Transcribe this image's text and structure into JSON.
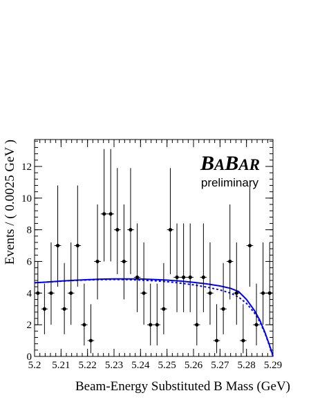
{
  "branding": {
    "logo": "BABAR",
    "logo_parts": [
      "B",
      "A",
      "B",
      "AR"
    ],
    "subtitle": "preliminary"
  },
  "chart_data": {
    "type": "scatter",
    "xlabel": "Beam-Energy Substituted B Mass (GeV)",
    "ylabel": "Events / ( 0.0025 GeV )",
    "xlim": [
      5.2,
      5.29
    ],
    "ylim": [
      0,
      13.7
    ],
    "x_ticks": [
      "5.2",
      "5.21",
      "5.22",
      "5.23",
      "5.24",
      "5.25",
      "5.26",
      "5.27",
      "5.28",
      "5.29"
    ],
    "y_ticks": [
      "0",
      "2",
      "4",
      "6",
      "8",
      "10",
      "12"
    ],
    "x_tick_values": [
      5.2,
      5.21,
      5.22,
      5.23,
      5.24,
      5.25,
      5.26,
      5.27,
      5.28,
      5.29
    ],
    "y_tick_values": [
      0,
      2,
      4,
      6,
      8,
      10,
      12
    ],
    "bin_half_width": 0.00125,
    "points": [
      {
        "x": 5.20125,
        "y": 4,
        "err": [
          2.0,
          2.0
        ]
      },
      {
        "x": 5.20375,
        "y": 3,
        "err": [
          1.6,
          1.6
        ]
      },
      {
        "x": 5.20625,
        "y": 4,
        "err": [
          2.0,
          3.2
        ]
      },
      {
        "x": 5.20875,
        "y": 7,
        "err": [
          2.6,
          3.8
        ]
      },
      {
        "x": 5.21125,
        "y": 3,
        "err": [
          1.6,
          2.9
        ]
      },
      {
        "x": 5.21375,
        "y": 4,
        "err": [
          2.0,
          3.2
        ]
      },
      {
        "x": 5.21625,
        "y": 7,
        "err": [
          2.6,
          3.8
        ]
      },
      {
        "x": 5.21875,
        "y": 2,
        "err": [
          1.3,
          2.6
        ]
      },
      {
        "x": 5.22125,
        "y": 1,
        "err": [
          0.8,
          2.3
        ]
      },
      {
        "x": 5.22375,
        "y": 6,
        "err": [
          2.4,
          3.6
        ]
      },
      {
        "x": 5.22625,
        "y": 9,
        "err": [
          3.0,
          4.1
        ]
      },
      {
        "x": 5.22875,
        "y": 9,
        "err": [
          3.0,
          4.1
        ]
      },
      {
        "x": 5.23125,
        "y": 8,
        "err": [
          2.8,
          3.9
        ]
      },
      {
        "x": 5.23375,
        "y": 6,
        "err": [
          2.4,
          3.6
        ]
      },
      {
        "x": 5.23625,
        "y": 8,
        "err": [
          2.8,
          3.9
        ]
      },
      {
        "x": 5.23875,
        "y": 5,
        "err": [
          2.2,
          3.4
        ]
      },
      {
        "x": 5.24125,
        "y": 4,
        "err": [
          2.0,
          3.2
        ]
      },
      {
        "x": 5.24375,
        "y": 2,
        "err": [
          1.3,
          2.6
        ]
      },
      {
        "x": 5.24625,
        "y": 2,
        "err": [
          1.3,
          2.6
        ]
      },
      {
        "x": 5.24875,
        "y": 3,
        "err": [
          1.6,
          2.9
        ]
      },
      {
        "x": 5.25125,
        "y": 8,
        "err": [
          2.8,
          3.9
        ]
      },
      {
        "x": 5.25375,
        "y": 5,
        "err": [
          2.2,
          3.4
        ]
      },
      {
        "x": 5.25625,
        "y": 5,
        "err": [
          2.2,
          3.4
        ]
      },
      {
        "x": 5.25875,
        "y": 5,
        "err": [
          2.2,
          3.4
        ]
      },
      {
        "x": 5.26125,
        "y": 2,
        "err": [
          1.3,
          2.6
        ]
      },
      {
        "x": 5.26375,
        "y": 5,
        "err": [
          2.2,
          3.4
        ]
      },
      {
        "x": 5.26625,
        "y": 4,
        "err": [
          2.0,
          3.2
        ]
      },
      {
        "x": 5.26875,
        "y": 1,
        "err": [
          0.8,
          2.3
        ]
      },
      {
        "x": 5.27125,
        "y": 3,
        "err": [
          1.6,
          2.9
        ]
      },
      {
        "x": 5.27375,
        "y": 6,
        "err": [
          2.4,
          3.6
        ]
      },
      {
        "x": 5.27625,
        "y": 4,
        "err": [
          2.0,
          3.2
        ]
      },
      {
        "x": 5.27875,
        "y": 1,
        "err": [
          0.8,
          2.3
        ]
      },
      {
        "x": 5.28125,
        "y": 7,
        "err": [
          2.6,
          3.8
        ]
      },
      {
        "x": 5.28375,
        "y": 2,
        "err": [
          1.3,
          2.6
        ]
      },
      {
        "x": 5.28625,
        "y": 4,
        "err": [
          2.0,
          3.2
        ]
      },
      {
        "x": 5.28875,
        "y": 4,
        "err": [
          2.0,
          3.2
        ]
      }
    ],
    "curves": [
      {
        "style": "solid",
        "color": "#0000ff",
        "x": [
          5.2,
          5.205,
          5.21,
          5.215,
          5.22,
          5.225,
          5.23,
          5.235,
          5.24,
          5.245,
          5.25,
          5.255,
          5.26,
          5.265,
          5.27,
          5.274,
          5.277,
          5.28,
          5.283,
          5.285,
          5.287,
          5.2885,
          5.2895,
          5.29
        ],
        "y": [
          4.65,
          4.7,
          4.76,
          4.81,
          4.85,
          4.88,
          4.9,
          4.9,
          4.89,
          4.86,
          4.82,
          4.76,
          4.68,
          4.58,
          4.45,
          4.3,
          4.1,
          3.6,
          2.9,
          2.3,
          1.5,
          0.8,
          0.3,
          0.0
        ]
      },
      {
        "style": "dashed",
        "color": "#0000ff",
        "x": [
          5.2,
          5.205,
          5.21,
          5.215,
          5.22,
          5.225,
          5.23,
          5.235,
          5.24,
          5.245,
          5.25,
          5.255,
          5.26,
          5.265,
          5.27,
          5.274,
          5.277,
          5.28,
          5.283,
          5.285,
          5.287,
          5.2885,
          5.2895,
          5.29
        ],
        "y": [
          4.65,
          4.7,
          4.75,
          4.8,
          4.83,
          4.85,
          4.86,
          4.85,
          4.82,
          4.78,
          4.72,
          4.63,
          4.52,
          4.38,
          4.2,
          4.0,
          3.75,
          3.35,
          2.75,
          2.2,
          1.45,
          0.75,
          0.25,
          0.0
        ]
      }
    ],
    "grid": false,
    "legend": "none"
  }
}
